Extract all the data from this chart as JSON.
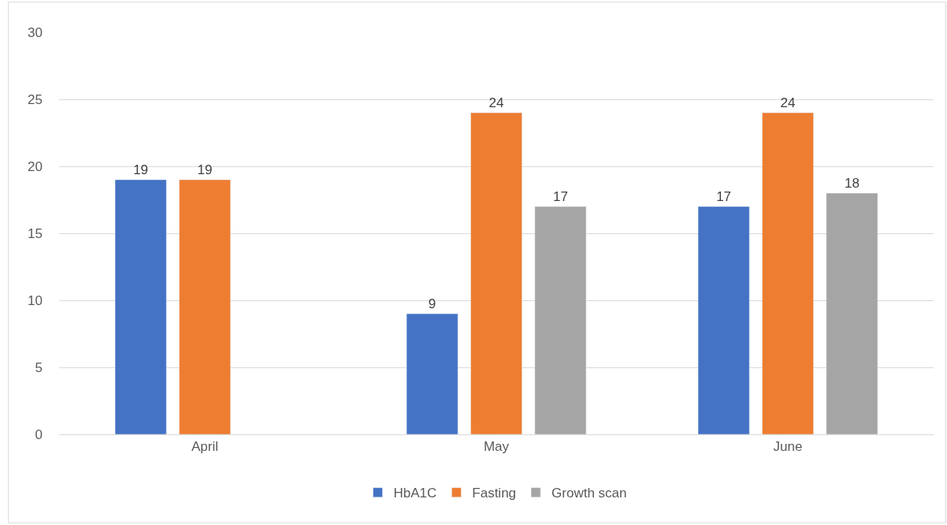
{
  "chart_data": {
    "type": "bar",
    "categories": [
      "April",
      "May",
      "June"
    ],
    "series": [
      {
        "name": "HbA1C",
        "color": "#4472c4",
        "values": [
          19,
          9,
          17
        ]
      },
      {
        "name": "Fasting",
        "color": "#ed7d31",
        "values": [
          19,
          24,
          24
        ]
      },
      {
        "name": "Growth scan",
        "color": "#a5a5a5",
        "values": [
          null,
          17,
          18
        ]
      }
    ],
    "ylim": [
      0,
      30
    ],
    "yticks": [
      0,
      5,
      10,
      15,
      20,
      25,
      30
    ],
    "grid": "y",
    "legend": "bottom",
    "data_labels": true
  }
}
